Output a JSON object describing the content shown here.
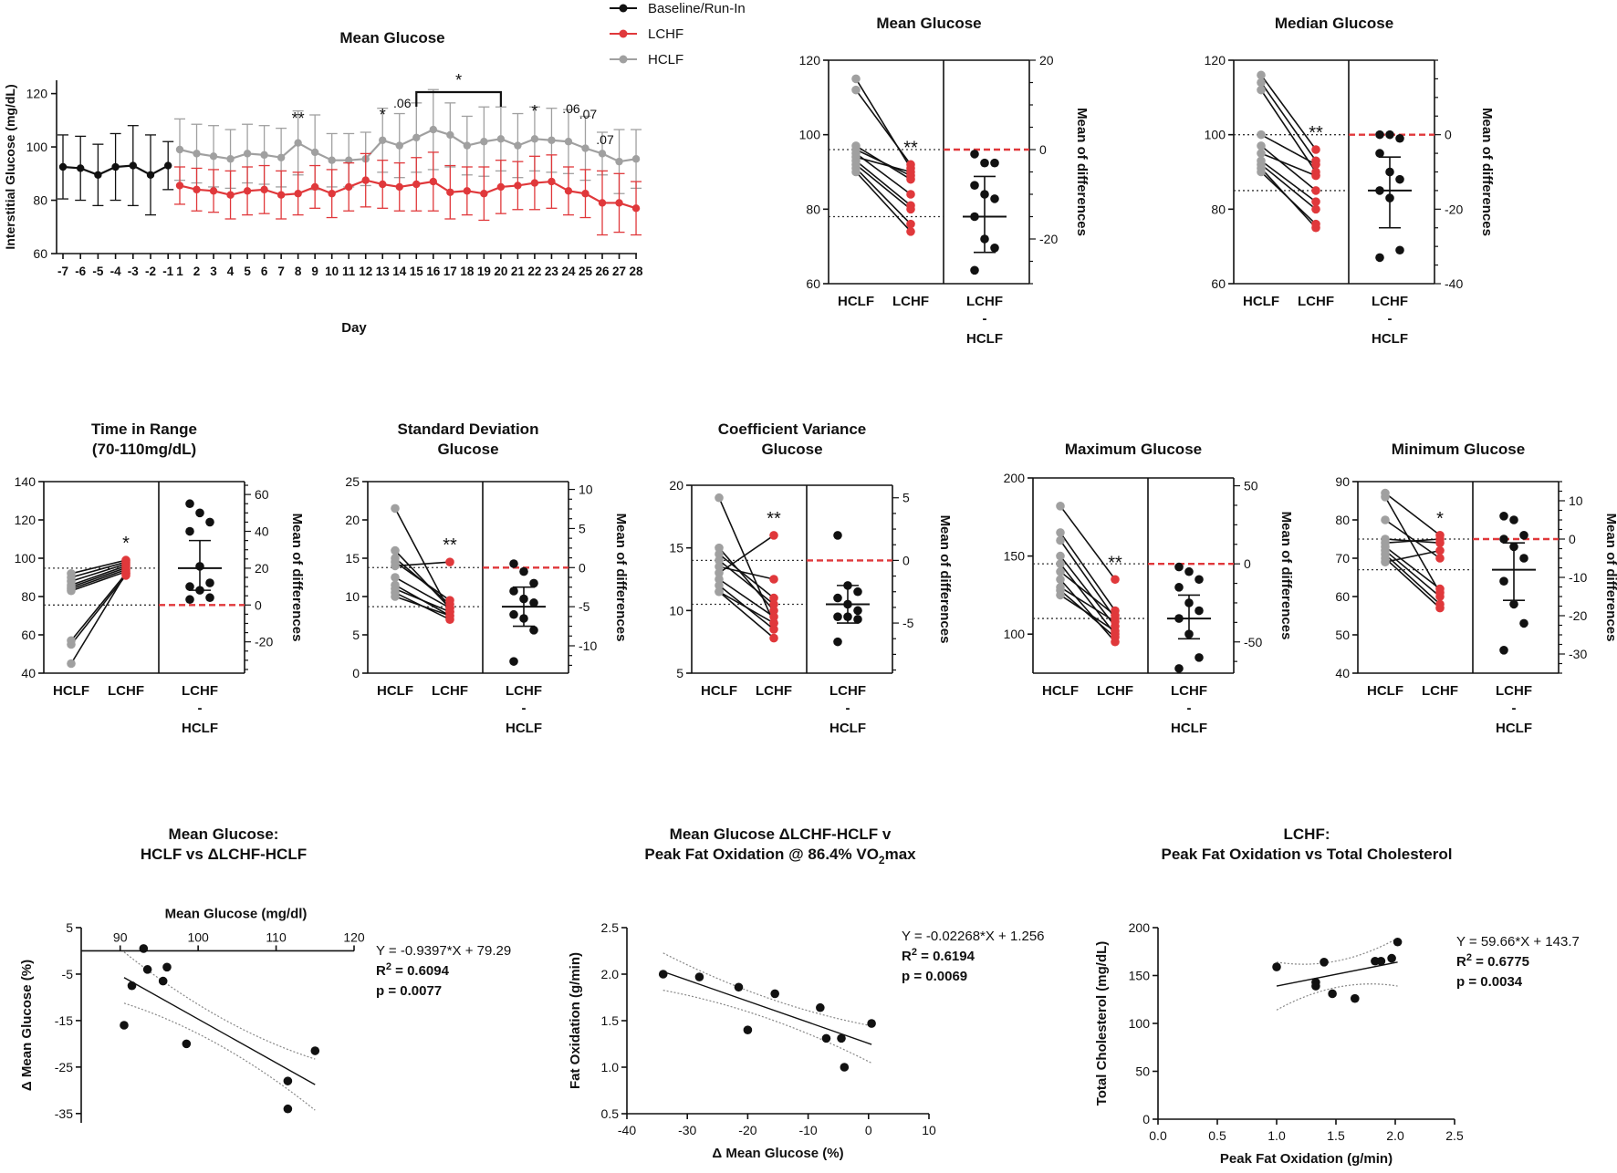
{
  "colors": {
    "baseline": "#111111",
    "lchf": "#e0383b",
    "hclf": "#a0a0a0",
    "axis": "#111111",
    "ref": "#e0383b"
  },
  "chart_data": [
    {
      "id": "timeseries",
      "type": "line",
      "title": "Mean Glucose",
      "xlabel": "Day",
      "ylabel": "Interstitial Glucose (mg/dL)",
      "ylim": [
        60,
        125
      ],
      "yticks": [
        60,
        80,
        100,
        120
      ],
      "legend": [
        "Baseline/Run-In",
        "LCHF",
        "HCLF"
      ],
      "series": [
        {
          "name": "Baseline/Run-In",
          "x": [
            -7,
            -6,
            -5,
            -4,
            -3,
            -2,
            -1
          ],
          "values": [
            92.5,
            92,
            89.5,
            92.5,
            93,
            89.5,
            93
          ],
          "err": [
            12,
            12,
            11.5,
            12.5,
            15,
            15,
            9
          ]
        },
        {
          "name": "HCLF",
          "x": [
            1,
            2,
            3,
            4,
            5,
            6,
            7,
            8,
            9,
            10,
            11,
            12,
            13,
            14,
            15,
            16,
            17,
            18,
            19,
            20,
            21,
            22,
            23,
            24,
            25,
            26,
            27,
            28
          ],
          "values": [
            99,
            97.5,
            96.5,
            95.5,
            97.5,
            97,
            96,
            101.5,
            98,
            95,
            95,
            95.5,
            102.5,
            100.5,
            103.5,
            106.5,
            104.5,
            100.5,
            102,
            103,
            100.5,
            103,
            102.5,
            102,
            99.5,
            97.5,
            94.5,
            95.5
          ],
          "err": [
            11.5,
            11,
            11.5,
            11,
            11,
            11,
            11,
            12,
            14,
            10,
            10,
            10,
            12,
            12,
            13,
            15,
            12,
            11,
            13,
            12,
            12,
            12,
            12,
            12,
            12,
            8,
            12,
            11
          ]
        },
        {
          "name": "LCHF",
          "x": [
            1,
            2,
            3,
            4,
            5,
            6,
            7,
            8,
            9,
            10,
            11,
            12,
            13,
            14,
            15,
            16,
            17,
            18,
            19,
            20,
            21,
            22,
            23,
            24,
            25,
            26,
            27,
            28
          ],
          "values": [
            85.5,
            84,
            83.5,
            82,
            83.5,
            84,
            82,
            82.5,
            85,
            82.5,
            85,
            87.5,
            86,
            85,
            86,
            87,
            83,
            83.5,
            82.5,
            85,
            85.5,
            86.5,
            87,
            83.5,
            82.5,
            79,
            79,
            77
          ],
          "err": [
            7,
            8,
            8,
            9,
            9,
            9,
            9,
            8,
            8,
            9,
            9,
            10,
            9,
            9,
            10,
            11,
            10,
            9,
            10,
            10,
            9,
            10,
            10,
            9,
            9,
            12,
            11,
            10
          ]
        }
      ],
      "annotations": [
        {
          "day": 8,
          "text": "**"
        },
        {
          "day": 13,
          "text": "*"
        },
        {
          "day": 14,
          "text": ".06"
        },
        {
          "day": 22,
          "text": "*"
        },
        {
          "day": 24,
          "text": ".06"
        },
        {
          "day": 25,
          "text": ".07"
        },
        {
          "day": 26,
          "text": ".07"
        }
      ],
      "bracket": {
        "from": 15,
        "to": 20,
        "text": "*"
      }
    },
    {
      "id": "mean",
      "type": "estimation",
      "title": [
        "Mean Glucose"
      ],
      "ylim": [
        60,
        120
      ],
      "yticks": [
        60,
        80,
        100,
        120
      ],
      "right_ylim": [
        -30,
        20
      ],
      "right_ticks": [
        -20,
        0,
        20
      ],
      "right_label": "Mean of differences",
      "hclf": [
        115,
        112,
        97,
        96,
        95,
        94,
        93,
        92,
        91,
        90
      ],
      "lchf": [
        91,
        92,
        88,
        89,
        84,
        90,
        81,
        80,
        76,
        74
      ],
      "diffs": [
        -1,
        -3,
        -3,
        -8,
        -10,
        -11,
        -15,
        -20,
        -22,
        -27
      ],
      "diff_mean": -15,
      "diff_ci": [
        -23,
        -6
      ],
      "stars": "**",
      "xlabels": [
        "HCLF",
        "LCHF",
        "LCHF",
        "-",
        "HCLF"
      ]
    },
    {
      "id": "median",
      "type": "estimation",
      "title": [
        "Median Glucose"
      ],
      "ylim": [
        60,
        120
      ],
      "yticks": [
        60,
        80,
        100,
        120
      ],
      "right_ylim": [
        -40,
        20
      ],
      "right_ticks": [
        -40,
        -20,
        0
      ],
      "right_label": "Mean of differences",
      "hclf": [
        116,
        114,
        112,
        100,
        97,
        95,
        93,
        92,
        91,
        90
      ],
      "lchf": [
        96,
        93,
        90,
        92,
        85,
        89,
        82,
        80,
        75,
        76
      ],
      "diffs": [
        0,
        0,
        -1,
        -5,
        -10,
        -12,
        -15,
        -17,
        -31,
        -33
      ],
      "diff_mean": -15,
      "diff_ci": [
        -25,
        -6
      ],
      "stars": "**",
      "xlabels": [
        "HCLF",
        "LCHF",
        "LCHF",
        "-",
        "HCLF"
      ]
    },
    {
      "id": "tir",
      "type": "estimation",
      "title": [
        "Time in Range",
        "(70-110mg/dL)"
      ],
      "ylim": [
        40,
        140
      ],
      "yticks": [
        40,
        60,
        80,
        100,
        120,
        140
      ],
      "right_ylim": [
        -37,
        67
      ],
      "right_ticks": [
        -20,
        0,
        20,
        40,
        60
      ],
      "right_label": "Mean of differences",
      "hclf": [
        92,
        90,
        88,
        86,
        85,
        84,
        83,
        57,
        55,
        45
      ],
      "lchf": [
        99,
        98,
        97,
        96,
        95,
        94,
        93,
        92,
        91,
        92
      ],
      "diffs": [
        55,
        50,
        45,
        40,
        21,
        12,
        10,
        8,
        4,
        3
      ],
      "diff_mean": 20,
      "diff_ci": [
        8,
        35
      ],
      "stars": "*",
      "xlabels": [
        "HCLF",
        "LCHF",
        "LCHF",
        "-",
        "HCLF"
      ]
    },
    {
      "id": "sd",
      "type": "estimation",
      "title": [
        "Standard Deviation",
        "Glucose"
      ],
      "ylim": [
        0,
        25
      ],
      "yticks": [
        0,
        5,
        10,
        15,
        20,
        25
      ],
      "right_ylim": [
        -13.5,
        11
      ],
      "right_ticks": [
        -10,
        -5,
        0,
        5,
        10
      ],
      "right_label": "Mean of differences",
      "hclf": [
        21.5,
        16,
        15,
        14.5,
        14,
        12.5,
        11.5,
        11,
        10.5,
        10
      ],
      "lchf": [
        8,
        8.5,
        9,
        9.5,
        14.5,
        8.5,
        7.5,
        8,
        7,
        7.5
      ],
      "diffs": [
        0.5,
        -0.5,
        -2,
        -3,
        -4,
        -4.5,
        -6,
        -6.5,
        -8,
        -12
      ],
      "diff_mean": -5,
      "diff_ci": [
        -7.5,
        -2.5
      ],
      "stars": "**",
      "xlabels": [
        "HCLF",
        "LCHF",
        "LCHF",
        "-",
        "HCLF"
      ]
    },
    {
      "id": "cv",
      "type": "estimation",
      "title": [
        "Coefficient Variance",
        "Glucose"
      ],
      "ylim": [
        5,
        20
      ],
      "yticks": [
        5,
        10,
        15,
        20
      ],
      "right_ylim": [
        -9,
        6
      ],
      "right_ticks": [
        -5,
        0,
        5
      ],
      "right_label": "Mean of differences",
      "hclf": [
        19,
        15,
        14.5,
        14,
        13.5,
        13,
        12.5,
        12,
        11.5,
        11.5
      ],
      "lchf": [
        9,
        10,
        11,
        10.5,
        12.5,
        16,
        9.5,
        8.5,
        7.8,
        9
      ],
      "diffs": [
        2,
        -2,
        -2.5,
        -3,
        -3.5,
        -4,
        -4.5,
        -4.5,
        -4.7,
        -6.5
      ],
      "diff_mean": -3.5,
      "diff_ci": [
        -5,
        -2
      ],
      "stars": "**",
      "xlabels": [
        "HCLF",
        "LCHF",
        "LCHF",
        "-",
        "HCLF"
      ]
    },
    {
      "id": "max",
      "type": "estimation",
      "title": [
        "Maximum Glucose"
      ],
      "ylim": [
        75,
        200
      ],
      "yticks": [
        100,
        150,
        200
      ],
      "right_ylim": [
        -70,
        55
      ],
      "right_ticks": [
        -50,
        0,
        50
      ],
      "right_label": "Mean of differences",
      "hclf": [
        182,
        165,
        160,
        150,
        145,
        140,
        135,
        130,
        128,
        125
      ],
      "lchf": [
        135,
        115,
        110,
        105,
        100,
        112,
        95,
        108,
        98,
        102
      ],
      "diffs": [
        -2,
        -5,
        -10,
        -15,
        -25,
        -30,
        -35,
        -45,
        -60,
        -67
      ],
      "diff_mean": -35,
      "diff_ci": [
        -48,
        -20
      ],
      "stars": "**",
      "xlabels": [
        "HCLF",
        "LCHF",
        "LCHF",
        "-",
        "HCLF"
      ]
    },
    {
      "id": "min",
      "type": "estimation",
      "title": [
        "Minimum Glucose"
      ],
      "ylim": [
        40,
        90
      ],
      "yticks": [
        40,
        50,
        60,
        70,
        80,
        90
      ],
      "right_ylim": [
        -35,
        15
      ],
      "right_ticks": [
        -30,
        -20,
        -10,
        0,
        10
      ],
      "right_label": "Mean of differences",
      "hclf": [
        87,
        86,
        80,
        75,
        74,
        73,
        72,
        71,
        70,
        69
      ],
      "lchf": [
        76,
        61,
        70,
        74,
        75,
        62,
        60,
        58,
        57,
        72
      ],
      "diffs": [
        6,
        5,
        1,
        0,
        -2,
        -5,
        -11,
        -17,
        -22,
        -29
      ],
      "diff_mean": -8,
      "diff_ci": [
        -16,
        -1
      ],
      "stars": "*",
      "xlabels": [
        "HCLF",
        "LCHF",
        "LCHF",
        "-",
        "HCLF"
      ]
    },
    {
      "id": "reg1",
      "type": "scatter",
      "title": [
        "Mean Glucose:",
        "HCLF vs ΔLCHF-HCLF"
      ],
      "xlabel": "Mean Glucose (mg/dl)",
      "ylabel": "Δ Mean Glucose (%)",
      "xlim": [
        85,
        120
      ],
      "xticks": [
        90,
        100,
        110,
        120
      ],
      "ylim": [
        -37,
        5
      ],
      "yticks": [
        5,
        -5,
        -15,
        -25,
        -35
      ],
      "x": [
        93,
        90.5,
        91.5,
        93.5,
        96,
        95.5,
        98.5,
        111.5,
        111.5,
        115
      ],
      "y": [
        0.5,
        -16,
        -7.5,
        -4,
        -3.5,
        -6.5,
        -20,
        -28,
        -34,
        -21.5
      ],
      "fit": {
        "slope": -0.9397,
        "intercept": 79.29,
        "x0": 90.5,
        "x1": 115
      },
      "equation": "Y = -0.9397*X + 79.29",
      "r2_label": "R",
      "r2_sup": "2",
      "r2_value": " = 0.6094",
      "p": "p = 0.0077"
    },
    {
      "id": "reg2",
      "type": "scatter",
      "title": [
        "Mean Glucose ΔLCHF-HCLF v",
        "Peak Fat Oxidation @ 86.4% VO",
        "2",
        "max"
      ],
      "xlabel": "Δ Mean Glucose (%)",
      "ylabel": "Fat Oxidation (g/min)",
      "xlim": [
        -40,
        10
      ],
      "xticks": [
        -40,
        -30,
        -20,
        -10,
        0,
        10
      ],
      "ylim": [
        0.5,
        2.5
      ],
      "yticks": [
        0.5,
        1.0,
        1.5,
        2.0,
        2.5
      ],
      "x": [
        -34,
        -28,
        -21.5,
        -20,
        -15.5,
        -8,
        -7,
        -4.5,
        -4,
        0.5
      ],
      "y": [
        2.0,
        1.97,
        1.86,
        1.4,
        1.79,
        1.64,
        1.31,
        1.31,
        1.0,
        1.47
      ],
      "fit": {
        "slope": -0.02268,
        "intercept": 1.256,
        "x0": -34,
        "x1": 0.5
      },
      "equation": "Y = -0.02268*X + 1.256",
      "r2_label": "R",
      "r2_sup": "2",
      "r2_value": " = 0.6194",
      "p": "p = 0.0069"
    },
    {
      "id": "reg3",
      "type": "scatter",
      "title": [
        "LCHF:",
        "Peak Fat Oxidation vs Total Cholesterol"
      ],
      "xlabel": "Peak Fat Oxidation (g/min)",
      "ylabel": "Total Cholesterol  (mg/dL)",
      "xlim": [
        0,
        2.5
      ],
      "xticks": [
        0.0,
        0.5,
        1.0,
        1.5,
        2.0,
        2.5
      ],
      "ylim": [
        0,
        200
      ],
      "yticks": [
        0,
        50,
        100,
        150,
        200
      ],
      "x": [
        1.0,
        1.33,
        1.33,
        1.4,
        1.47,
        1.66,
        1.83,
        1.88,
        1.97,
        2.02
      ],
      "y": [
        159,
        143,
        139,
        164,
        131,
        126,
        165,
        165,
        168,
        185
      ],
      "fit": {
        "slope": 59.66,
        "intercept": 143.7,
        "x0": 1.0,
        "x1": 2.02,
        "note": "fit line drawn as shown in figure"
      },
      "equation": "Y = 59.66*X + 143.7",
      "r2_label": "R",
      "r2_sup": "2",
      "r2_value": " = 0.6775",
      "p": "p = 0.0034"
    }
  ]
}
